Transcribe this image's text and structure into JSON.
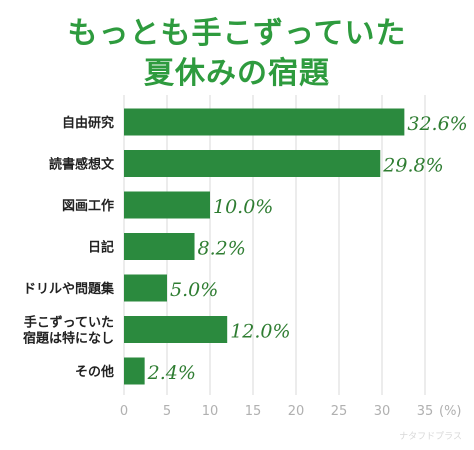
{
  "title": {
    "line1": "もっとも手こずっていた",
    "line2": "夏休みの宿題"
  },
  "colors": {
    "title": "#2e9b3e",
    "bar": "#2b8a3e",
    "value_label": "#2f7d32",
    "grid": "#d9d9d9",
    "tick": "#b0b0b0"
  },
  "chart_data": {
    "type": "bar",
    "orientation": "horizontal",
    "categories": [
      [
        "自由研究"
      ],
      [
        "読書感想文"
      ],
      [
        "図画工作"
      ],
      [
        "日記"
      ],
      [
        "ドリルや問題集"
      ],
      [
        "手こずっていた",
        "宿題は特になし"
      ],
      [
        "その他"
      ]
    ],
    "values": [
      32.6,
      29.8,
      10.0,
      8.2,
      5.0,
      12.0,
      2.4
    ],
    "value_labels": [
      "32.6%",
      "29.8%",
      "10.0%",
      "8.2%",
      "5.0%",
      "12.0%",
      "2.4%"
    ],
    "xlim": [
      0,
      35
    ],
    "xticks": [
      "0",
      "5",
      "10",
      "15",
      "20",
      "25",
      "30",
      "35"
    ],
    "x_unit": "(%)",
    "grid": "vertical"
  },
  "watermark": "ナタフドプラス"
}
